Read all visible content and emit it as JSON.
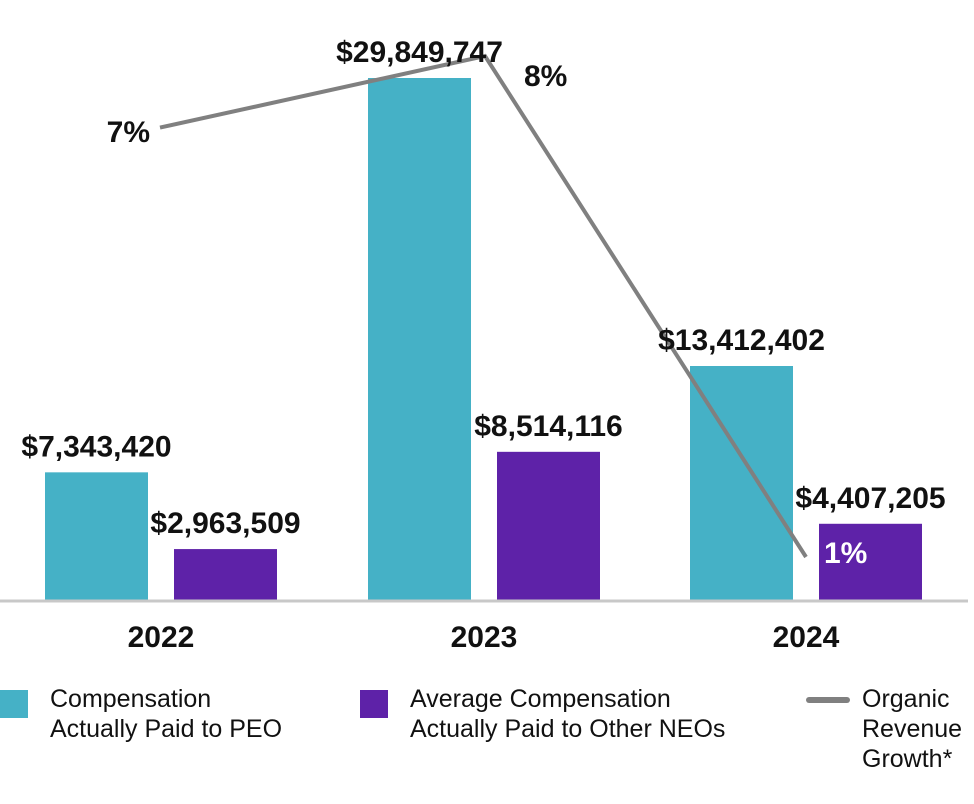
{
  "chart_data": {
    "type": "bar",
    "categories": [
      "2022",
      "2023",
      "2024"
    ],
    "series": [
      {
        "name": "Compensation Actually Paid to PEO",
        "legend_lines": [
          "Compensation",
          "Actually Paid to PEO"
        ],
        "values": [
          7343420,
          29849747,
          13412402
        ],
        "labels": [
          "$7,343,420",
          "$29,849,747",
          "$13,412,402"
        ],
        "color": "#45b1c6"
      },
      {
        "name": "Average Compensation Actually Paid to Other NEOs",
        "legend_lines": [
          "Average Compensation",
          "Actually Paid to Other NEOs"
        ],
        "values": [
          2963509,
          8514116,
          4407205
        ],
        "labels": [
          "$2,963,509",
          "$8,514,116",
          "$4,407,205"
        ],
        "color": "#5e22a8"
      }
    ],
    "line_series": {
      "name": "Organic Revenue Growth*",
      "legend_lines": [
        "Organic",
        "Revenue",
        "Growth*"
      ],
      "values": [
        7,
        8,
        1
      ],
      "labels": [
        "7%",
        "8%",
        "1%"
      ],
      "color": "#808080"
    },
    "ylim": [
      0,
      30000000
    ],
    "grid": false,
    "legend_position": "bottom"
  }
}
